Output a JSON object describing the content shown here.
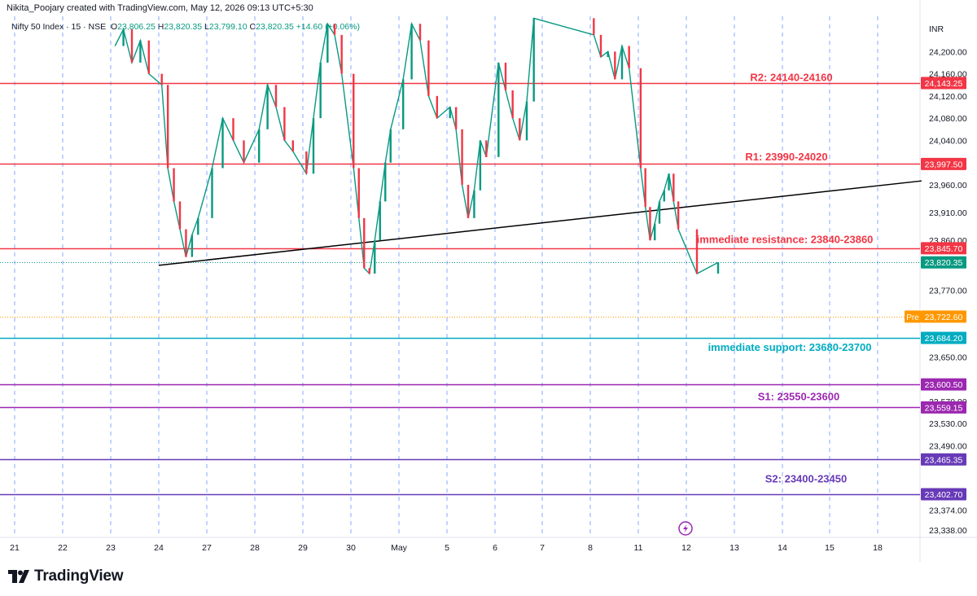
{
  "header": {
    "credit": "Nikita_Poojary created with TradingView.com, May 12, 2026 09:13 UTC+5:30",
    "symbol": "Nifty 50 Index · 15 · NSE",
    "ohlc": {
      "o_label": "O",
      "o_value": "23,806.25",
      "h_label": "H",
      "h_value": "23,820.35",
      "l_label": "L",
      "l_value": "23,799.10",
      "c_label": "C",
      "c_value": "23,820.35",
      "change": "+14.60 (+0.06%)"
    }
  },
  "currency": "INR",
  "brand": {
    "name": "TradingView"
  },
  "chart_data": {
    "type": "line",
    "symbol": "Nifty 50 Index",
    "interval": "15",
    "exchange": "NSE",
    "y_axis": {
      "position": "right",
      "tick_labels": [
        "24,200.00",
        "24,160.00",
        "24,120.00",
        "24,080.00",
        "24,040.00",
        "23,960.00",
        "23,910.00",
        "23,860.00",
        "23,770.00",
        "23,650.00",
        "23,570.00",
        "23,530.00",
        "23,490.00",
        "23,374.00",
        "23,338.00"
      ]
    },
    "x_axis": {
      "tick_labels": [
        "21",
        "22",
        "23",
        "24",
        "27",
        "28",
        "29",
        "30",
        "May",
        "5",
        "6",
        "7",
        "8",
        "11",
        "12",
        "13",
        "14",
        "15",
        "18"
      ]
    },
    "grid": {
      "vertical": "dashed",
      "horizontal": false
    },
    "price_levels": [
      {
        "value": 24143.25,
        "label": "24,143.25",
        "color": "#f23645"
      },
      {
        "value": 23997.5,
        "label": "23,997.50",
        "color": "#f23645"
      },
      {
        "value": 23845.7,
        "label": "23,845.70",
        "color": "#f23645"
      },
      {
        "value": 23820.35,
        "label": "23,820.35",
        "color": "#089981"
      },
      {
        "value": 23722.6,
        "label": "23,722.60",
        "color": "#ff9800",
        "tag": "Pre"
      },
      {
        "value": 23684.2,
        "label": "23,684.20",
        "color": "#00acc1"
      },
      {
        "value": 23600.5,
        "label": "23,600.50",
        "color": "#9c27b0"
      },
      {
        "value": 23559.15,
        "label": "23,559.15",
        "color": "#9c27b0"
      },
      {
        "value": 23465.35,
        "label": "23,465.35",
        "color": "#673ab7"
      },
      {
        "value": 23402.7,
        "label": "23,402.70",
        "color": "#673ab7"
      }
    ],
    "annotations": [
      {
        "text": "R2: 24140-24160",
        "color": "#f23645"
      },
      {
        "text": "R1: 23990-24020",
        "color": "#f23645"
      },
      {
        "text": "immediate resistance: 23840-23860",
        "color": "#f23645"
      },
      {
        "text": "immediate support: 23680-23700",
        "color": "#00acc1"
      },
      {
        "text": "S1: 23550-23600",
        "color": "#9c27b0"
      },
      {
        "text": "S2: 23400-23450",
        "color": "#673ab7"
      }
    ],
    "trendline": {
      "color": "#000000",
      "points": [
        {
          "x": "24",
          "y": 23815
        },
        {
          "x": "18",
          "y": 23967
        }
      ]
    },
    "price_series": [
      {
        "x": "23",
        "y": 24210
      },
      {
        "x": "23",
        "y": 24240
      },
      {
        "x": "23",
        "y": 24180
      },
      {
        "x": "23",
        "y": 24220
      },
      {
        "x": "23",
        "y": 24160
      },
      {
        "x": "24",
        "y": 24140
      },
      {
        "x": "24",
        "y": 23990
      },
      {
        "x": "24",
        "y": 23930
      },
      {
        "x": "24",
        "y": 23880
      },
      {
        "x": "24",
        "y": 23830
      },
      {
        "x": "24",
        "y": 23870
      },
      {
        "x": "24",
        "y": 23900
      },
      {
        "x": "27",
        "y": 23990
      },
      {
        "x": "27",
        "y": 24080
      },
      {
        "x": "27",
        "y": 24040
      },
      {
        "x": "27",
        "y": 24000
      },
      {
        "x": "28",
        "y": 24060
      },
      {
        "x": "28",
        "y": 24140
      },
      {
        "x": "28",
        "y": 24100
      },
      {
        "x": "28",
        "y": 24040
      },
      {
        "x": "28",
        "y": 24020
      },
      {
        "x": "29",
        "y": 23980
      },
      {
        "x": "29",
        "y": 24080
      },
      {
        "x": "29",
        "y": 24180
      },
      {
        "x": "29",
        "y": 24250
      },
      {
        "x": "29",
        "y": 24230
      },
      {
        "x": "29",
        "y": 24160
      },
      {
        "x": "30",
        "y": 23990
      },
      {
        "x": "30",
        "y": 23900
      },
      {
        "x": "30",
        "y": 23810
      },
      {
        "x": "30",
        "y": 23800
      },
      {
        "x": "30",
        "y": 23860
      },
      {
        "x": "30",
        "y": 23930
      },
      {
        "x": "30",
        "y": 24000
      },
      {
        "x": "30",
        "y": 24060
      },
      {
        "x": "May",
        "y": 24150
      },
      {
        "x": "May",
        "y": 24250
      },
      {
        "x": "May",
        "y": 24220
      },
      {
        "x": "May",
        "y": 24120
      },
      {
        "x": "May",
        "y": 24080
      },
      {
        "x": "5",
        "y": 24100
      },
      {
        "x": "5",
        "y": 24060
      },
      {
        "x": "5",
        "y": 23960
      },
      {
        "x": "5",
        "y": 23900
      },
      {
        "x": "5",
        "y": 23950
      },
      {
        "x": "5",
        "y": 24040
      },
      {
        "x": "5",
        "y": 24010
      },
      {
        "x": "6",
        "y": 24180
      },
      {
        "x": "6",
        "y": 24130
      },
      {
        "x": "6",
        "y": 24080
      },
      {
        "x": "6",
        "y": 24040
      },
      {
        "x": "6",
        "y": 24110
      },
      {
        "x": "6",
        "y": 24260
      },
      {
        "x": "8",
        "y": 24230
      },
      {
        "x": "8",
        "y": 24190
      },
      {
        "x": "8",
        "y": 24200
      },
      {
        "x": "8",
        "y": 24150
      },
      {
        "x": "8",
        "y": 24210
      },
      {
        "x": "8",
        "y": 24170
      },
      {
        "x": "11",
        "y": 23990
      },
      {
        "x": "11",
        "y": 23920
      },
      {
        "x": "11",
        "y": 23860
      },
      {
        "x": "11",
        "y": 23890
      },
      {
        "x": "11",
        "y": 23930
      },
      {
        "x": "11",
        "y": 23950
      },
      {
        "x": "11",
        "y": 23980
      },
      {
        "x": "11",
        "y": 23930
      },
      {
        "x": "11",
        "y": 23880
      },
      {
        "x": "12",
        "y": 23800
      },
      {
        "x": "12",
        "y": 23820
      }
    ]
  }
}
